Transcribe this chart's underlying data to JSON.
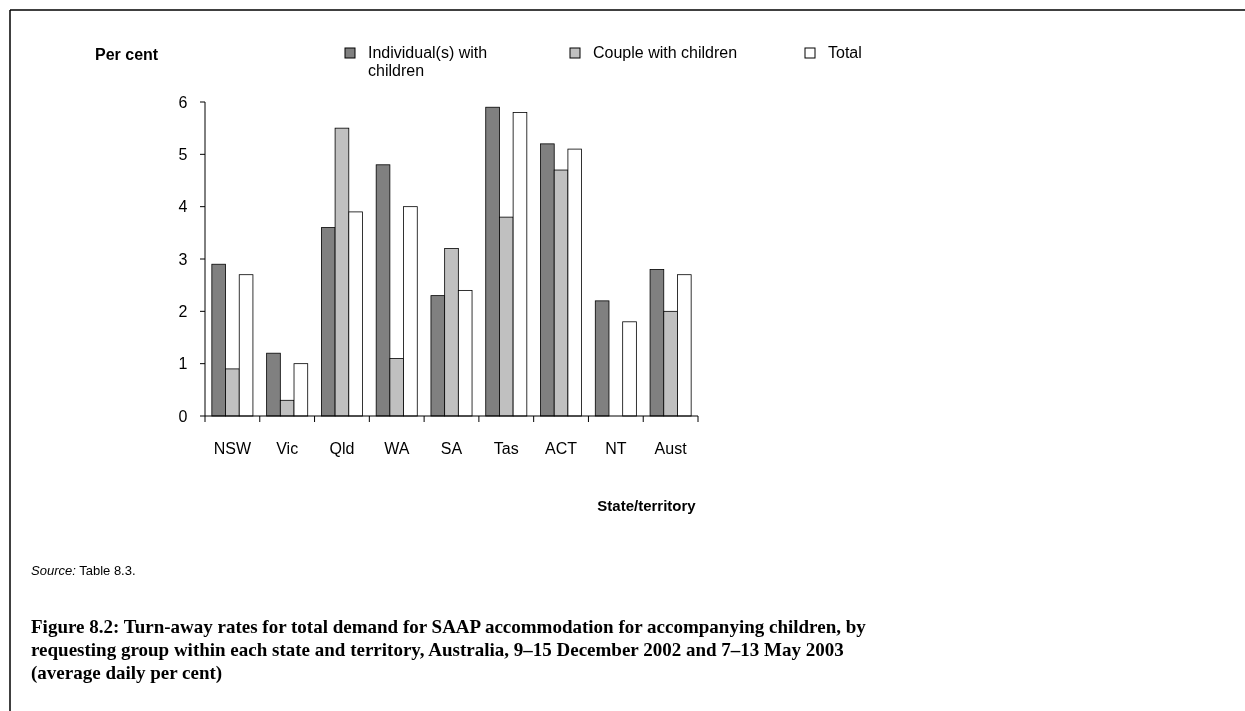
{
  "chart_data": {
    "type": "bar",
    "xlabel": "State/territory",
    "ylabel": "Per cent",
    "categories": [
      "NSW",
      "Vic",
      "Qld",
      "WA",
      "SA",
      "Tas",
      "ACT",
      "NT",
      "Aust"
    ],
    "series": [
      {
        "name": "Individual(s) with children",
        "color": "#808080",
        "values": [
          2.9,
          1.2,
          3.6,
          4.8,
          2.3,
          5.9,
          5.2,
          2.2,
          2.8
        ]
      },
      {
        "name": "Couple with children",
        "color": "#c0c0c0",
        "values": [
          0.9,
          0.3,
          5.5,
          1.1,
          3.2,
          3.8,
          4.7,
          null,
          2.0
        ]
      },
      {
        "name": "Total",
        "color": "#ffffff",
        "values": [
          2.7,
          1.0,
          3.9,
          4.0,
          2.4,
          5.8,
          5.1,
          1.8,
          2.7
        ]
      }
    ],
    "ylim": [
      0,
      6
    ],
    "yticks": [
      0,
      1,
      2,
      3,
      4,
      5,
      6
    ],
    "grid": false,
    "legend": "top",
    "annotations": [
      "Source: Table 8.3."
    ],
    "title": "Figure 8.2: Turn-away rates for total demand for SAAP accommodation for accompanying children, by requesting group within each state and territory, Australia, 9–15 December 2002 and 7–13 May 2003 (average daily per cent)"
  }
}
